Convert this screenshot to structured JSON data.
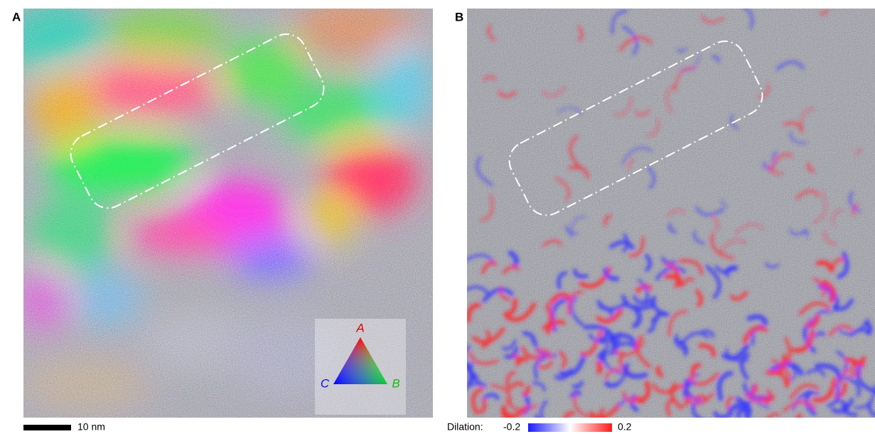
{
  "panels": [
    {
      "label": "A",
      "scale_bar": "10 nm",
      "legend": {
        "vertex_a": "A",
        "vertex_b": "B",
        "vertex_c": "C"
      }
    },
    {
      "label": "B",
      "colorbar": {
        "label": "Dilation:",
        "min": -0.2,
        "max": 0.2
      }
    }
  ]
}
